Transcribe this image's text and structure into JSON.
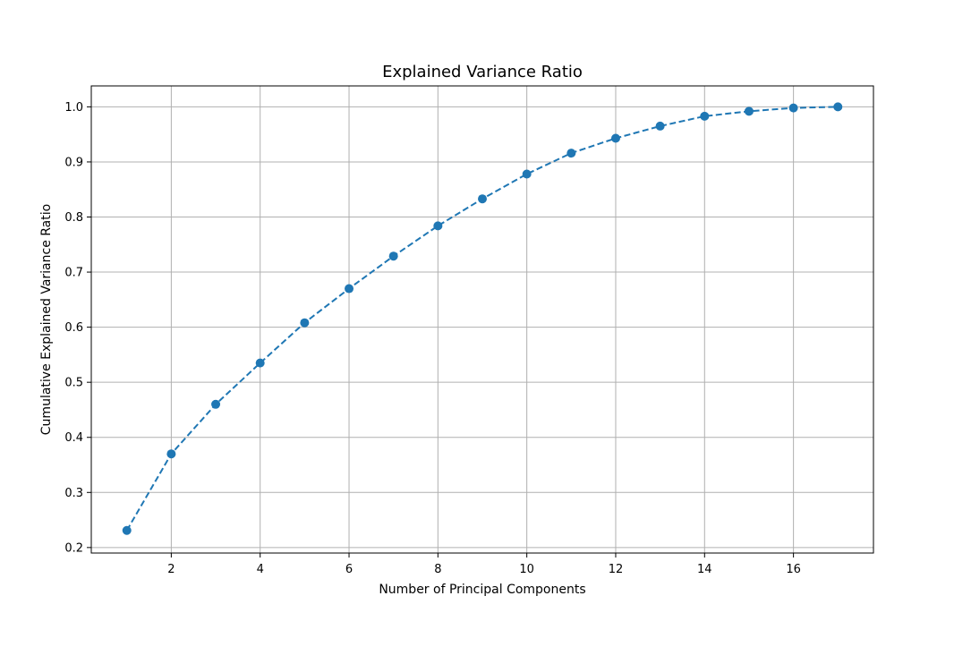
{
  "chart_data": {
    "type": "line",
    "title": "Explained Variance Ratio",
    "xlabel": "Number of Principal Components",
    "ylabel": "Cumulative Explained Variance Ratio",
    "xlim": [
      0.2,
      17.8
    ],
    "ylim": [
      0.19,
      1.038
    ],
    "xticks": [
      2,
      4,
      6,
      8,
      10,
      12,
      14,
      16
    ],
    "yticks": [
      0.2,
      0.3,
      0.4,
      0.5,
      0.6,
      0.7,
      0.8,
      0.9,
      1.0
    ],
    "ytick_labels": [
      "0.2",
      "0.3",
      "0.4",
      "0.5",
      "0.6",
      "0.7",
      "0.8",
      "0.9",
      "1.0"
    ],
    "grid": true,
    "series": [
      {
        "line_style": "dashed",
        "marker": "circle",
        "color": "#1f77b4",
        "x": [
          1,
          2,
          3,
          4,
          5,
          6,
          7,
          8,
          9,
          10,
          11,
          12,
          13,
          14,
          15,
          16,
          17
        ],
        "y": [
          0.231,
          0.37,
          0.46,
          0.535,
          0.608,
          0.67,
          0.729,
          0.784,
          0.833,
          0.878,
          0.916,
          0.943,
          0.965,
          0.983,
          0.992,
          0.998,
          1.0
        ]
      }
    ]
  }
}
